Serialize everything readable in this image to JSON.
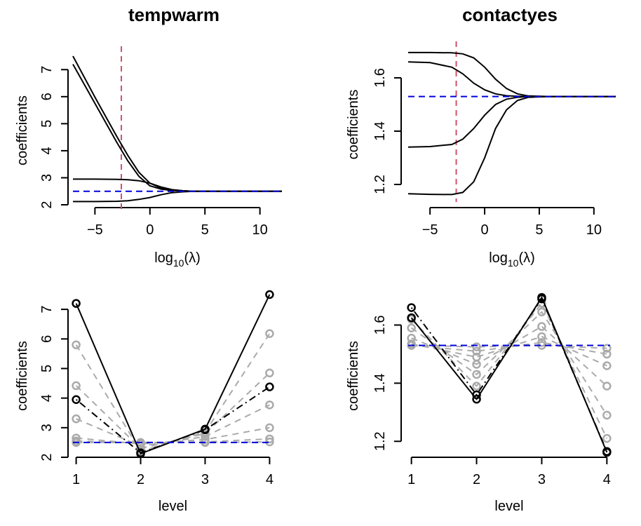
{
  "chart_data": [
    {
      "type": "line",
      "title": "tempwarm",
      "xlabel_parts": [
        "log",
        "10",
        "(λ)"
      ],
      "ylabel": "coefficients",
      "xlim": [
        -7,
        12
      ],
      "ylim": [
        2,
        7.5
      ],
      "xticks": [
        -5,
        0,
        5,
        10
      ],
      "yticks": [
        2,
        3,
        4,
        5,
        6,
        7
      ],
      "grid": false,
      "vline": {
        "x": -2.6,
        "color": "#d0516a"
      },
      "hline": {
        "y": 2.5,
        "color": "#0000dd"
      },
      "series": [
        {
          "x": [
            -7,
            -5,
            -3,
            -2,
            -1,
            0,
            1,
            2,
            3,
            4,
            6,
            8,
            12
          ],
          "values": [
            7.5,
            5.98,
            4.52,
            3.82,
            3.2,
            2.8,
            2.62,
            2.55,
            2.52,
            2.5,
            2.5,
            2.5,
            2.5
          ]
        },
        {
          "x": [
            -7,
            -5,
            -3,
            -2,
            -1,
            0,
            1,
            2,
            3,
            4,
            6,
            8,
            12
          ],
          "values": [
            7.2,
            5.75,
            4.3,
            3.62,
            3.05,
            2.7,
            2.58,
            2.53,
            2.51,
            2.5,
            2.5,
            2.5,
            2.5
          ]
        },
        {
          "x": [
            -7,
            -5,
            -3,
            -2,
            -1,
            0,
            1,
            2,
            3,
            4,
            6,
            8,
            12
          ],
          "values": [
            2.95,
            2.95,
            2.94,
            2.93,
            2.89,
            2.8,
            2.66,
            2.56,
            2.52,
            2.5,
            2.5,
            2.5,
            2.5
          ]
        },
        {
          "x": [
            -7,
            -5,
            -3,
            -2,
            -1,
            0,
            1,
            2,
            3,
            4,
            6,
            8,
            12
          ],
          "values": [
            2.12,
            2.12,
            2.13,
            2.15,
            2.2,
            2.27,
            2.37,
            2.45,
            2.48,
            2.5,
            2.5,
            2.5,
            2.5
          ]
        }
      ]
    },
    {
      "type": "line",
      "title": "contactyes",
      "xlabel_parts": [
        "log",
        "10",
        "(λ)"
      ],
      "ylabel": "coefficients",
      "xlim": [
        -7,
        12
      ],
      "ylim": [
        1.15,
        1.7
      ],
      "xticks": [
        -5,
        0,
        5,
        10
      ],
      "yticks": [
        1.2,
        1.4,
        1.6
      ],
      "grid": false,
      "vline": {
        "x": -2.6,
        "color": "#d0516a"
      },
      "hline": {
        "y": 1.53,
        "color": "#0000dd"
      },
      "series": [
        {
          "x": [
            -7,
            -5,
            -3,
            -2,
            -1,
            0,
            1,
            2,
            3,
            4,
            6,
            8,
            12
          ],
          "values": [
            1.695,
            1.695,
            1.694,
            1.69,
            1.675,
            1.64,
            1.595,
            1.56,
            1.54,
            1.532,
            1.53,
            1.53,
            1.53
          ]
        },
        {
          "x": [
            -7,
            -5,
            -3,
            -2,
            -1,
            0,
            1,
            2,
            3,
            4,
            6,
            8,
            12
          ],
          "values": [
            1.66,
            1.657,
            1.64,
            1.615,
            1.58,
            1.555,
            1.54,
            1.533,
            1.531,
            1.53,
            1.53,
            1.53,
            1.53
          ]
        },
        {
          "x": [
            -7,
            -5,
            -3,
            -2,
            -1,
            0,
            1,
            2,
            3,
            4,
            6,
            8,
            12
          ],
          "values": [
            1.34,
            1.342,
            1.35,
            1.37,
            1.41,
            1.46,
            1.5,
            1.52,
            1.527,
            1.53,
            1.53,
            1.53,
            1.53
          ]
        },
        {
          "x": [
            -7,
            -5,
            -3,
            -2,
            -1,
            0,
            1,
            2,
            3,
            4,
            6,
            8,
            12
          ],
          "values": [
            1.165,
            1.163,
            1.162,
            1.17,
            1.21,
            1.3,
            1.41,
            1.48,
            1.515,
            1.527,
            1.53,
            1.53,
            1.53
          ]
        }
      ]
    },
    {
      "type": "line",
      "title": "",
      "xlabel": "level",
      "ylabel": "coefficients",
      "xlim": [
        0.95,
        4.05
      ],
      "ylim": [
        2,
        7.5
      ],
      "xticks": [
        1,
        2,
        3,
        4
      ],
      "yticks": [
        2,
        3,
        4,
        5,
        6,
        7
      ],
      "grid": false,
      "hline": {
        "y": 2.5,
        "color": "#0000dd"
      },
      "series": [
        {
          "style": "solid",
          "color": "#000000",
          "x": [
            1,
            2,
            3,
            4
          ],
          "values": [
            7.2,
            2.12,
            2.95,
            7.5
          ]
        },
        {
          "style": "dotdash",
          "color": "#000000",
          "x": [
            1,
            2,
            3,
            4
          ],
          "values": [
            3.95,
            2.15,
            2.93,
            4.38
          ]
        },
        {
          "style": "dashed",
          "color": "#aaaaaa",
          "x": [
            1,
            2,
            3,
            4
          ],
          "values": [
            5.8,
            2.2,
            2.85,
            6.18
          ]
        },
        {
          "style": "dashed",
          "color": "#aaaaaa",
          "x": [
            1,
            2,
            3,
            4
          ],
          "values": [
            4.42,
            2.3,
            2.8,
            4.85
          ]
        },
        {
          "style": "dashed",
          "color": "#aaaaaa",
          "x": [
            1,
            2,
            3,
            4
          ],
          "values": [
            3.3,
            2.38,
            2.7,
            3.77
          ]
        },
        {
          "style": "dashed",
          "color": "#aaaaaa",
          "x": [
            1,
            2,
            3,
            4
          ],
          "values": [
            2.65,
            2.45,
            2.6,
            3.0
          ]
        },
        {
          "style": "dashed",
          "color": "#aaaaaa",
          "x": [
            1,
            2,
            3,
            4
          ],
          "values": [
            2.55,
            2.48,
            2.52,
            2.62
          ]
        },
        {
          "style": "dashed",
          "color": "#aaaaaa",
          "x": [
            1,
            2,
            3,
            4
          ],
          "values": [
            2.5,
            2.5,
            2.5,
            2.52
          ]
        }
      ]
    },
    {
      "type": "line",
      "title": "",
      "xlabel": "level",
      "ylabel": "coefficients",
      "xlim": [
        0.95,
        4.05
      ],
      "ylim": [
        1.15,
        1.7
      ],
      "xticks": [
        1,
        2,
        3,
        4
      ],
      "yticks": [
        1.2,
        1.4,
        1.6
      ],
      "grid": false,
      "hline": {
        "y": 1.53,
        "color": "#0000dd"
      },
      "series": [
        {
          "style": "solid",
          "color": "#000000",
          "x": [
            1,
            2,
            3,
            4
          ],
          "values": [
            1.625,
            1.345,
            1.695,
            1.162
          ]
        },
        {
          "style": "dotdash",
          "color": "#000000",
          "x": [
            1,
            2,
            3,
            4
          ],
          "values": [
            1.66,
            1.36,
            1.69,
            1.165
          ]
        },
        {
          "style": "dashed",
          "color": "#aaaaaa",
          "x": [
            1,
            2,
            3,
            4
          ],
          "values": [
            1.62,
            1.39,
            1.675,
            1.21
          ]
        },
        {
          "style": "dashed",
          "color": "#aaaaaa",
          "x": [
            1,
            2,
            3,
            4
          ],
          "values": [
            1.59,
            1.43,
            1.645,
            1.29
          ]
        },
        {
          "style": "dashed",
          "color": "#aaaaaa",
          "x": [
            1,
            2,
            3,
            4
          ],
          "values": [
            1.555,
            1.465,
            1.595,
            1.39
          ]
        },
        {
          "style": "dashed",
          "color": "#aaaaaa",
          "x": [
            1,
            2,
            3,
            4
          ],
          "values": [
            1.535,
            1.49,
            1.56,
            1.46
          ]
        },
        {
          "style": "dashed",
          "color": "#aaaaaa",
          "x": [
            1,
            2,
            3,
            4
          ],
          "values": [
            1.53,
            1.51,
            1.54,
            1.5
          ]
        },
        {
          "style": "dashed",
          "color": "#aaaaaa",
          "x": [
            1,
            2,
            3,
            4
          ],
          "values": [
            1.53,
            1.525,
            1.53,
            1.52
          ]
        }
      ]
    }
  ]
}
